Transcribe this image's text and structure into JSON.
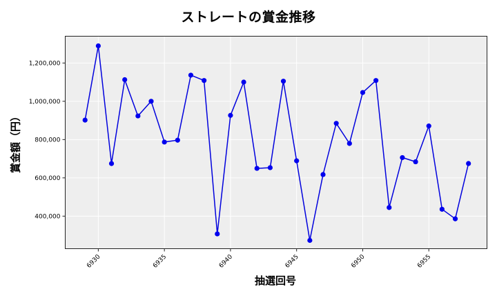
{
  "chart_data": {
    "type": "line",
    "title": "ストレートの賞金推移",
    "xlabel": "抽選回号",
    "ylabel": "賞金額（円）",
    "x": [
      6929,
      6930,
      6931,
      6932,
      6933,
      6934,
      6935,
      6936,
      6937,
      6938,
      6939,
      6940,
      6941,
      6942,
      6943,
      6944,
      6945,
      6946,
      6947,
      6948,
      6949,
      6950,
      6951,
      6952,
      6953,
      6954,
      6955,
      6956,
      6957,
      6958
    ],
    "series": [
      {
        "name": "ストレート",
        "color": "#0000dd",
        "values": [
          901800,
          1289500,
          674700,
          1113000,
          923500,
          1000000,
          787000,
          796800,
          1136600,
          1108700,
          307200,
          926400,
          1100400,
          649600,
          653200,
          1105000,
          689100,
          273200,
          617300,
          884800,
          779700,
          1046000,
          1108700,
          445000,
          706000,
          684000,
          871000,
          436000,
          386000,
          675000
        ]
      }
    ],
    "xticks": [
      6930,
      6935,
      6940,
      6945,
      6950,
      6955
    ],
    "yticks": [
      400000,
      600000,
      800000,
      1000000,
      1200000
    ],
    "ytick_labels": [
      "400,000",
      "600,000",
      "800,000",
      "1,000,000",
      "1,200,000"
    ],
    "xlim": [
      6927.5,
      6959.4
    ],
    "ylim": [
      230000,
      1340000
    ],
    "grid": true,
    "legend": "none",
    "colors": {
      "line": "#0000dd",
      "marker": "#0000ee",
      "plot_bg": "#eeeeee",
      "grid": "#ffffff",
      "frame": "#222222"
    }
  }
}
